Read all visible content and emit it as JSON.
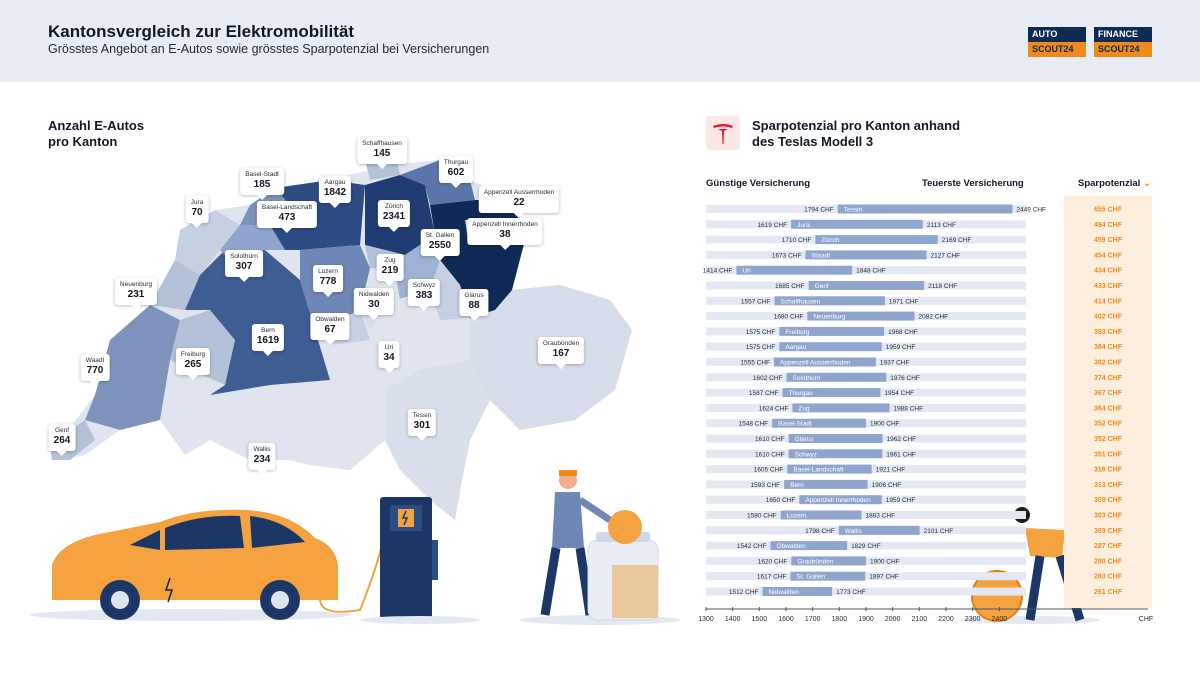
{
  "header": {
    "title": "Kantonsvergleich zur Elektromobilität",
    "subtitle": "Grösstes Angebot an E-Autos sowie grösstes Sparpotenzial bei Versicherungen",
    "logo_auto_top": "AUTO",
    "logo_auto_bottom": "SCOUT24",
    "logo_finance_top": "FINANCE",
    "logo_finance_bottom": "SCOUT24"
  },
  "map": {
    "title_line1": "Anzahl E-Autos",
    "title_line2": "pro Kanton"
  },
  "insurance": {
    "title_line1": "Sparpotenzial pro Kanton anhand",
    "title_line2": "des Teslas Modell 3",
    "col_low": "Günstige Versicherung",
    "col_high": "Teuerste Versicherung",
    "col_savings": "Sparpotenzial",
    "axis_unit": "CHF"
  },
  "colors": {
    "bar": "#8fa5cd",
    "track": "#e4e8f2",
    "savings": "#f08a1a",
    "map_dark": "#0f2a55",
    "map_light": "#dfe4ee"
  },
  "chart_data": [
    {
      "type": "map",
      "title": "Anzahl E-Autos pro Kanton",
      "categories": [
        "Jura",
        "Basel-Stadt",
        "Basel-Landschaft",
        "Aargau",
        "Schaffhausen",
        "Thurgau",
        "Zürich",
        "Appenzell Ausserrhoden",
        "Appenzell Innerrhoden",
        "St. Gallen",
        "Solothurn",
        "Zug",
        "Luzern",
        "Schwyz",
        "Nidwalden",
        "Glarus",
        "Neuenburg",
        "Obwalden",
        "Bern",
        "Uri",
        "Graubünden",
        "Waadt",
        "Freiburg",
        "Tessin",
        "Genf",
        "Wallis"
      ],
      "values": [
        70,
        185,
        473,
        1842,
        145,
        602,
        2341,
        22,
        38,
        2550,
        307,
        219,
        778,
        383,
        30,
        88,
        231,
        67,
        1619,
        34,
        167,
        770,
        265,
        301,
        264,
        234
      ]
    },
    {
      "type": "bar",
      "title": "Sparpotenzial pro Kanton anhand des Teslas Modell 3",
      "xlabel": "CHF",
      "xlim": [
        1300,
        2500
      ],
      "xticks": [
        1300,
        1400,
        1500,
        1600,
        1700,
        1800,
        1900,
        2000,
        2100,
        2200,
        2300,
        2400
      ],
      "rows": [
        {
          "canton": "Tessin",
          "min": 1794,
          "max": 2449,
          "saving": 655
        },
        {
          "canton": "Jura",
          "min": 1619,
          "max": 2113,
          "saving": 494
        },
        {
          "canton": "Zürich",
          "min": 1710,
          "max": 2169,
          "saving": 459
        },
        {
          "canton": "Waadt",
          "min": 1673,
          "max": 2127,
          "saving": 454
        },
        {
          "canton": "Uri",
          "min": 1414,
          "max": 1848,
          "saving": 434
        },
        {
          "canton": "Genf",
          "min": 1685,
          "max": 2118,
          "saving": 433
        },
        {
          "canton": "Schaffhausen",
          "min": 1557,
          "max": 1971,
          "saving": 414
        },
        {
          "canton": "Neuenburg",
          "min": 1680,
          "max": 2082,
          "saving": 402
        },
        {
          "canton": "Freiburg",
          "min": 1575,
          "max": 1968,
          "saving": 393
        },
        {
          "canton": "Aargau",
          "min": 1575,
          "max": 1959,
          "saving": 384
        },
        {
          "canton": "Appenzell Ausserrhoden",
          "min": 1555,
          "max": 1937,
          "saving": 382
        },
        {
          "canton": "Solothurn",
          "min": 1602,
          "max": 1976,
          "saving": 374
        },
        {
          "canton": "Thurgau",
          "min": 1587,
          "max": 1954,
          "saving": 367
        },
        {
          "canton": "Zug",
          "min": 1624,
          "max": 1988,
          "saving": 364
        },
        {
          "canton": "Basel-Stadt",
          "min": 1548,
          "max": 1900,
          "saving": 352
        },
        {
          "canton": "Glarus",
          "min": 1610,
          "max": 1962,
          "saving": 352
        },
        {
          "canton": "Schwyz",
          "min": 1610,
          "max": 1961,
          "saving": 351
        },
        {
          "canton": "Basel-Landschaft",
          "min": 1605,
          "max": 1921,
          "saving": 316
        },
        {
          "canton": "Bern",
          "min": 1593,
          "max": 1906,
          "saving": 313
        },
        {
          "canton": "Appenzell Innerrhoden",
          "min": 1650,
          "max": 1959,
          "saving": 309
        },
        {
          "canton": "Luzern",
          "min": 1580,
          "max": 1883,
          "saving": 303
        },
        {
          "canton": "Wallis",
          "min": 1798,
          "max": 2101,
          "saving": 303
        },
        {
          "canton": "Obwalden",
          "min": 1542,
          "max": 1829,
          "saving": 287
        },
        {
          "canton": "Graubünden",
          "min": 1620,
          "max": 1900,
          "saving": 280
        },
        {
          "canton": "St. Gallen",
          "min": 1617,
          "max": 1897,
          "saving": 280
        },
        {
          "canton": "Nidwalden",
          "min": 1512,
          "max": 1773,
          "saving": 261
        }
      ]
    }
  ]
}
